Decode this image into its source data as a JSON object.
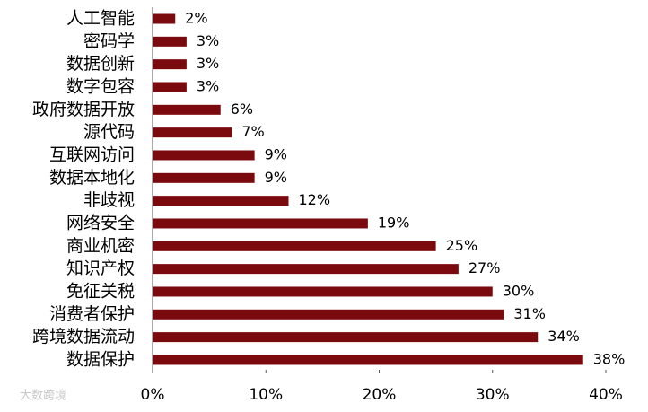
{
  "chart_data": {
    "type": "bar",
    "orientation": "horizontal",
    "categories": [
      "人工智能",
      "密码学",
      "数据创新",
      "数字包容",
      "政府数据开放",
      "源代码",
      "互联网访问",
      "数据本地化",
      "非歧视",
      "网络安全",
      "商业机密",
      "知识产权",
      "免征关税",
      "消费者保护",
      "跨境数据流动",
      "数据保护"
    ],
    "values": [
      2,
      3,
      3,
      3,
      6,
      7,
      9,
      9,
      12,
      19,
      25,
      27,
      30,
      31,
      34,
      38
    ],
    "value_labels": [
      "2%",
      "3%",
      "3%",
      "3%",
      "6%",
      "7%",
      "9%",
      "9%",
      "12%",
      "19%",
      "25%",
      "27%",
      "30%",
      "31%",
      "34%",
      "38%"
    ],
    "color": "#7b0a0e",
    "xlim": [
      0,
      40
    ],
    "xticks": [
      {
        "value": 0,
        "label": "0%"
      },
      {
        "value": 10,
        "label": "10%"
      },
      {
        "value": 20,
        "label": "20%"
      },
      {
        "value": 30,
        "label": "30%"
      },
      {
        "value": 40,
        "label": "40%"
      }
    ],
    "watermark": "大数跨境"
  }
}
